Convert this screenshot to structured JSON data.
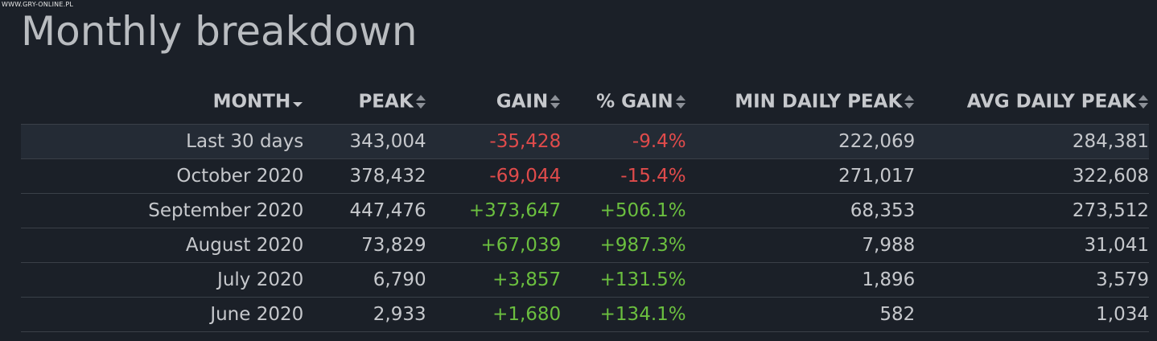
{
  "watermark": "WWW.GRY-ONLINE.PL",
  "title": "Monthly breakdown",
  "colors": {
    "background": "#1b2028",
    "negative": "#e04b4b",
    "positive": "#6bbf3f",
    "text": "#c6c8cc"
  },
  "columns": [
    {
      "label": "MONTH",
      "sort_icon": "caret-down-icon"
    },
    {
      "label": "PEAK",
      "sort_icon": "sort-both-icon"
    },
    {
      "label": "GAIN",
      "sort_icon": "sort-both-icon"
    },
    {
      "label": "% GAIN",
      "sort_icon": "sort-both-icon"
    },
    {
      "label": "MIN DAILY PEAK",
      "sort_icon": "sort-both-icon"
    },
    {
      "label": "AVG DAILY PEAK",
      "sort_icon": "sort-both-icon"
    }
  ],
  "rows": [
    {
      "month": "Last 30 days",
      "peak": "343,004",
      "gain": "-35,428",
      "pct_gain": "-9.4%",
      "min_daily_peak": "222,069",
      "avg_daily_peak": "284,381",
      "trend": "neg"
    },
    {
      "month": "October 2020",
      "peak": "378,432",
      "gain": "-69,044",
      "pct_gain": "-15.4%",
      "min_daily_peak": "271,017",
      "avg_daily_peak": "322,608",
      "trend": "neg"
    },
    {
      "month": "September 2020",
      "peak": "447,476",
      "gain": "+373,647",
      "pct_gain": "+506.1%",
      "min_daily_peak": "68,353",
      "avg_daily_peak": "273,512",
      "trend": "pos"
    },
    {
      "month": "August 2020",
      "peak": "73,829",
      "gain": "+67,039",
      "pct_gain": "+987.3%",
      "min_daily_peak": "7,988",
      "avg_daily_peak": "31,041",
      "trend": "pos"
    },
    {
      "month": "July 2020",
      "peak": "6,790",
      "gain": "+3,857",
      "pct_gain": "+131.5%",
      "min_daily_peak": "1,896",
      "avg_daily_peak": "3,579",
      "trend": "pos"
    },
    {
      "month": "June 2020",
      "peak": "2,933",
      "gain": "+1,680",
      "pct_gain": "+134.1%",
      "min_daily_peak": "582",
      "avg_daily_peak": "1,034",
      "trend": "pos"
    }
  ]
}
